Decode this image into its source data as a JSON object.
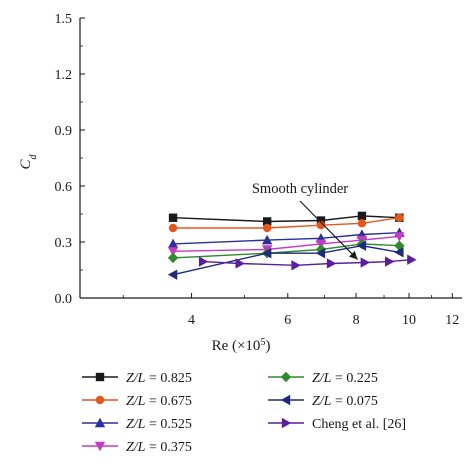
{
  "chart_data": {
    "type": "line",
    "xlabel": "Re (×10",
    "xlabel_exp": "5",
    "xlabel_close": ")",
    "ylabel": "C",
    "ylabel_sub": "d",
    "xscale": "log",
    "xlim": [
      2.5,
      12.5
    ],
    "ylim": [
      0.0,
      1.5
    ],
    "xticks": [
      4,
      6,
      8,
      10,
      12
    ],
    "yticks": [
      0.0,
      0.3,
      0.6,
      0.9,
      1.2,
      1.5
    ],
    "ytick_labels": [
      "0.0",
      "0.3",
      "0.6",
      "0.9",
      "1.2",
      "1.5"
    ],
    "grid": false,
    "legend_placement": "below",
    "series": [
      {
        "name": "Z/L = 0.825",
        "var": "Z/L",
        "val": " = 0.825",
        "color": "#1a1a1a",
        "marker": "square",
        "x": [
          3.7,
          5.5,
          6.9,
          8.2,
          9.6
        ],
        "y": [
          0.43,
          0.41,
          0.415,
          0.44,
          0.43
        ]
      },
      {
        "name": "Z/L = 0.675",
        "var": "Z/L",
        "val": " = 0.675",
        "color": "#e4571c",
        "marker": "circle",
        "x": [
          3.7,
          5.5,
          6.9,
          8.2,
          9.6
        ],
        "y": [
          0.375,
          0.375,
          0.39,
          0.4,
          0.43
        ]
      },
      {
        "name": "Z/L = 0.525",
        "var": "Z/L",
        "val": " = 0.525",
        "color": "#2b2f9c",
        "marker": "triangle-up",
        "x": [
          3.7,
          5.5,
          6.9,
          8.2,
          9.6
        ],
        "y": [
          0.29,
          0.31,
          0.32,
          0.34,
          0.35
        ]
      },
      {
        "name": "Z/L = 0.375",
        "var": "Z/L",
        "val": " = 0.375",
        "color": "#c23bc2",
        "marker": "triangle-down",
        "x": [
          3.7,
          5.5,
          6.9,
          8.2,
          9.6
        ],
        "y": [
          0.25,
          0.26,
          0.29,
          0.31,
          0.33
        ]
      },
      {
        "name": "Z/L = 0.225",
        "var": "Z/L",
        "val": " = 0.225",
        "color": "#2e8b2e",
        "marker": "diamond",
        "x": [
          3.7,
          5.5,
          6.9,
          8.2,
          9.6
        ],
        "y": [
          0.215,
          0.24,
          0.26,
          0.29,
          0.28
        ]
      },
      {
        "name": "Z/L = 0.075",
        "var": "Z/L",
        "val": " = 0.075",
        "color": "#1f2a7a",
        "marker": "triangle-left",
        "x": [
          3.7,
          5.5,
          6.9,
          8.2,
          9.6
        ],
        "y": [
          0.125,
          0.24,
          0.24,
          0.28,
          0.245
        ]
      },
      {
        "name": "Cheng et al. [26]",
        "var": "",
        "val": "Cheng et al. [26]",
        "color": "#5a1f9e",
        "marker": "triangle-right",
        "x": [
          4.2,
          4.9,
          6.2,
          7.2,
          8.3,
          9.2,
          10.1
        ],
        "y": [
          0.195,
          0.185,
          0.175,
          0.185,
          0.19,
          0.195,
          0.205
        ]
      }
    ],
    "annotations": [
      {
        "text": "Smooth cylinder",
        "arrow_to": [
          8.05,
          0.19
        ]
      }
    ]
  }
}
